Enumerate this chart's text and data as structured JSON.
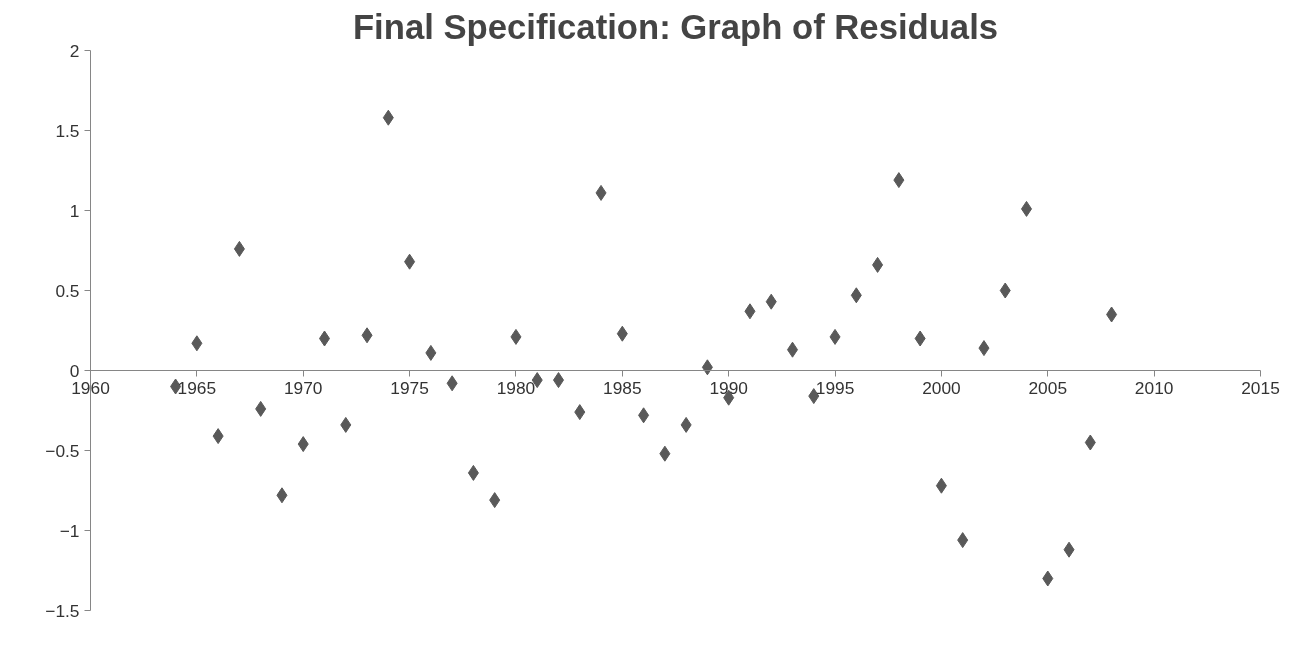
{
  "chart_data": {
    "type": "scatter",
    "title": "Final Specification: Graph of Residuals",
    "x": [
      1964,
      1965,
      1966,
      1967,
      1968,
      1969,
      1970,
      1971,
      1972,
      1973,
      1974,
      1975,
      1976,
      1977,
      1978,
      1979,
      1980,
      1981,
      1982,
      1983,
      1984,
      1985,
      1986,
      1987,
      1988,
      1989,
      1990,
      1991,
      1992,
      1993,
      1994,
      1995,
      1996,
      1997,
      1998,
      1999,
      2000,
      2001,
      2002,
      2003,
      2004,
      2005,
      2006,
      2007,
      2008
    ],
    "series": [
      {
        "color": "#595959",
        "values": [
          -0.1,
          0.17,
          -0.41,
          0.76,
          -0.24,
          -0.78,
          -0.46,
          0.2,
          -0.34,
          0.22,
          1.58,
          0.68,
          0.11,
          -0.08,
          -0.64,
          -0.81,
          0.21,
          -0.06,
          -0.06,
          -0.26,
          1.11,
          0.23,
          -0.28,
          -0.52,
          -0.34,
          0.02,
          -0.17,
          0.37,
          0.43,
          0.13,
          -0.16,
          0.21,
          0.47,
          0.66,
          1.19,
          0.2,
          -0.72,
          -1.06,
          0.14,
          0.5,
          1.01,
          -1.3,
          -1.12,
          -0.45,
          0.35
        ]
      }
    ],
    "xlim": [
      1960,
      2015
    ],
    "xticks": [
      1960,
      1965,
      1970,
      1975,
      1980,
      1985,
      1990,
      1995,
      2000,
      2005,
      2010,
      2015
    ],
    "ylim": [
      -1.5,
      2
    ],
    "yticks": [
      -1.5,
      -1,
      -0.5,
      0,
      0.5,
      1,
      1.5,
      2
    ],
    "marker": "diamond",
    "grid": false
  }
}
